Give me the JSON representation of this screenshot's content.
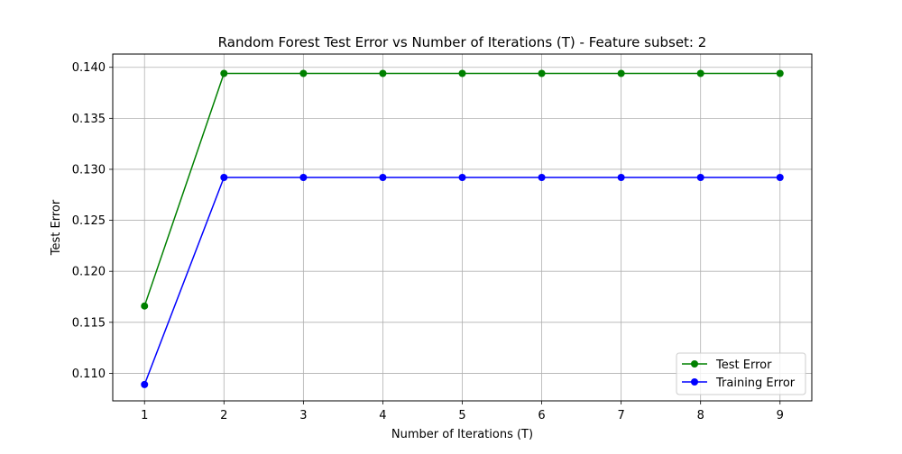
{
  "chart_data": {
    "type": "line",
    "title": "Random Forest Test Error vs Number of Iterations (T) - Feature subset: 2",
    "xlabel": "Number of Iterations (T)",
    "ylabel": "Test Error",
    "x": [
      1,
      2,
      3,
      4,
      5,
      6,
      7,
      8,
      9
    ],
    "xlim": [
      0.6,
      9.4
    ],
    "ylim": [
      0.1073,
      0.1413
    ],
    "xticks": [
      "1",
      "2",
      "3",
      "4",
      "5",
      "6",
      "7",
      "8",
      "9"
    ],
    "yticks": [
      "0.110",
      "0.115",
      "0.120",
      "0.125",
      "0.130",
      "0.135",
      "0.140"
    ],
    "ytick_values": [
      0.11,
      0.115,
      0.12,
      0.125,
      0.13,
      0.135,
      0.14
    ],
    "grid": true,
    "legend_position": "lower-right",
    "series": [
      {
        "name": "Test Error",
        "color": "#008000",
        "marker": "circle",
        "values": [
          0.1166,
          0.1394,
          0.1394,
          0.1394,
          0.1394,
          0.1394,
          0.1394,
          0.1394,
          0.1394
        ]
      },
      {
        "name": "Training Error",
        "color": "#0000ff",
        "marker": "circle",
        "values": [
          0.1089,
          0.1292,
          0.1292,
          0.1292,
          0.1292,
          0.1292,
          0.1292,
          0.1292,
          0.1292
        ]
      }
    ]
  }
}
